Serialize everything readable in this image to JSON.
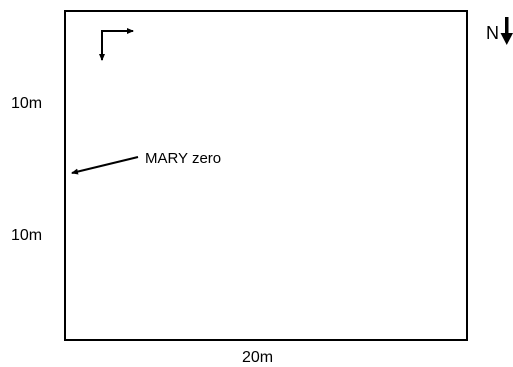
{
  "dimensions": {
    "upper_side_label": "10m",
    "lower_side_label": "10m",
    "bottom_label": "20m"
  },
  "annotation": {
    "label": "MARY zero"
  },
  "north": {
    "label": "N",
    "icon": "north-arrow-down-icon"
  },
  "axes_marker": {
    "icon": "corner-axes-arrow-icon"
  }
}
